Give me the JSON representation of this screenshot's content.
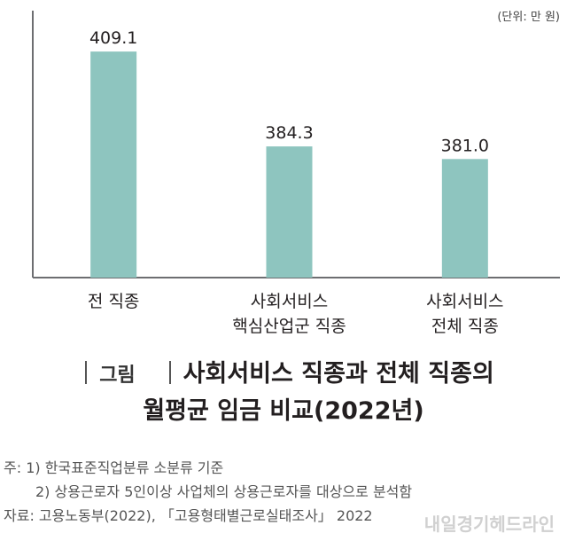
{
  "unit": "(단위: 만 원)",
  "chart_data": {
    "type": "bar",
    "categories": [
      [
        "전 직종"
      ],
      [
        "사회서비스",
        "핵심산업군 직종"
      ],
      [
        "사회서비스",
        "전체 직종"
      ]
    ],
    "values": [
      409.1,
      384.3,
      381.0
    ],
    "value_labels": [
      "409.1",
      "384.3",
      "381.0"
    ],
    "bar_color": "#8ec5bf",
    "axis_color": "#6d6e71",
    "ylim": [
      350,
      414
    ]
  },
  "caption": {
    "figure_label": "그림",
    "title_line1": "사회서비스 직종과 전체 직종의",
    "title_line2": "월평균 임금 비교(2022년)"
  },
  "notes": {
    "note1": "주: 1) 한국표준직업분류 소분류 기준",
    "note2": "2) 상용근로자 5인이상 사업체의 상용근로자를 대상으로 분석함",
    "source": "자료: 고용노동부(2022), 「고용형태별근로실태조사」 2022"
  },
  "watermark": "내일경기헤드라인"
}
